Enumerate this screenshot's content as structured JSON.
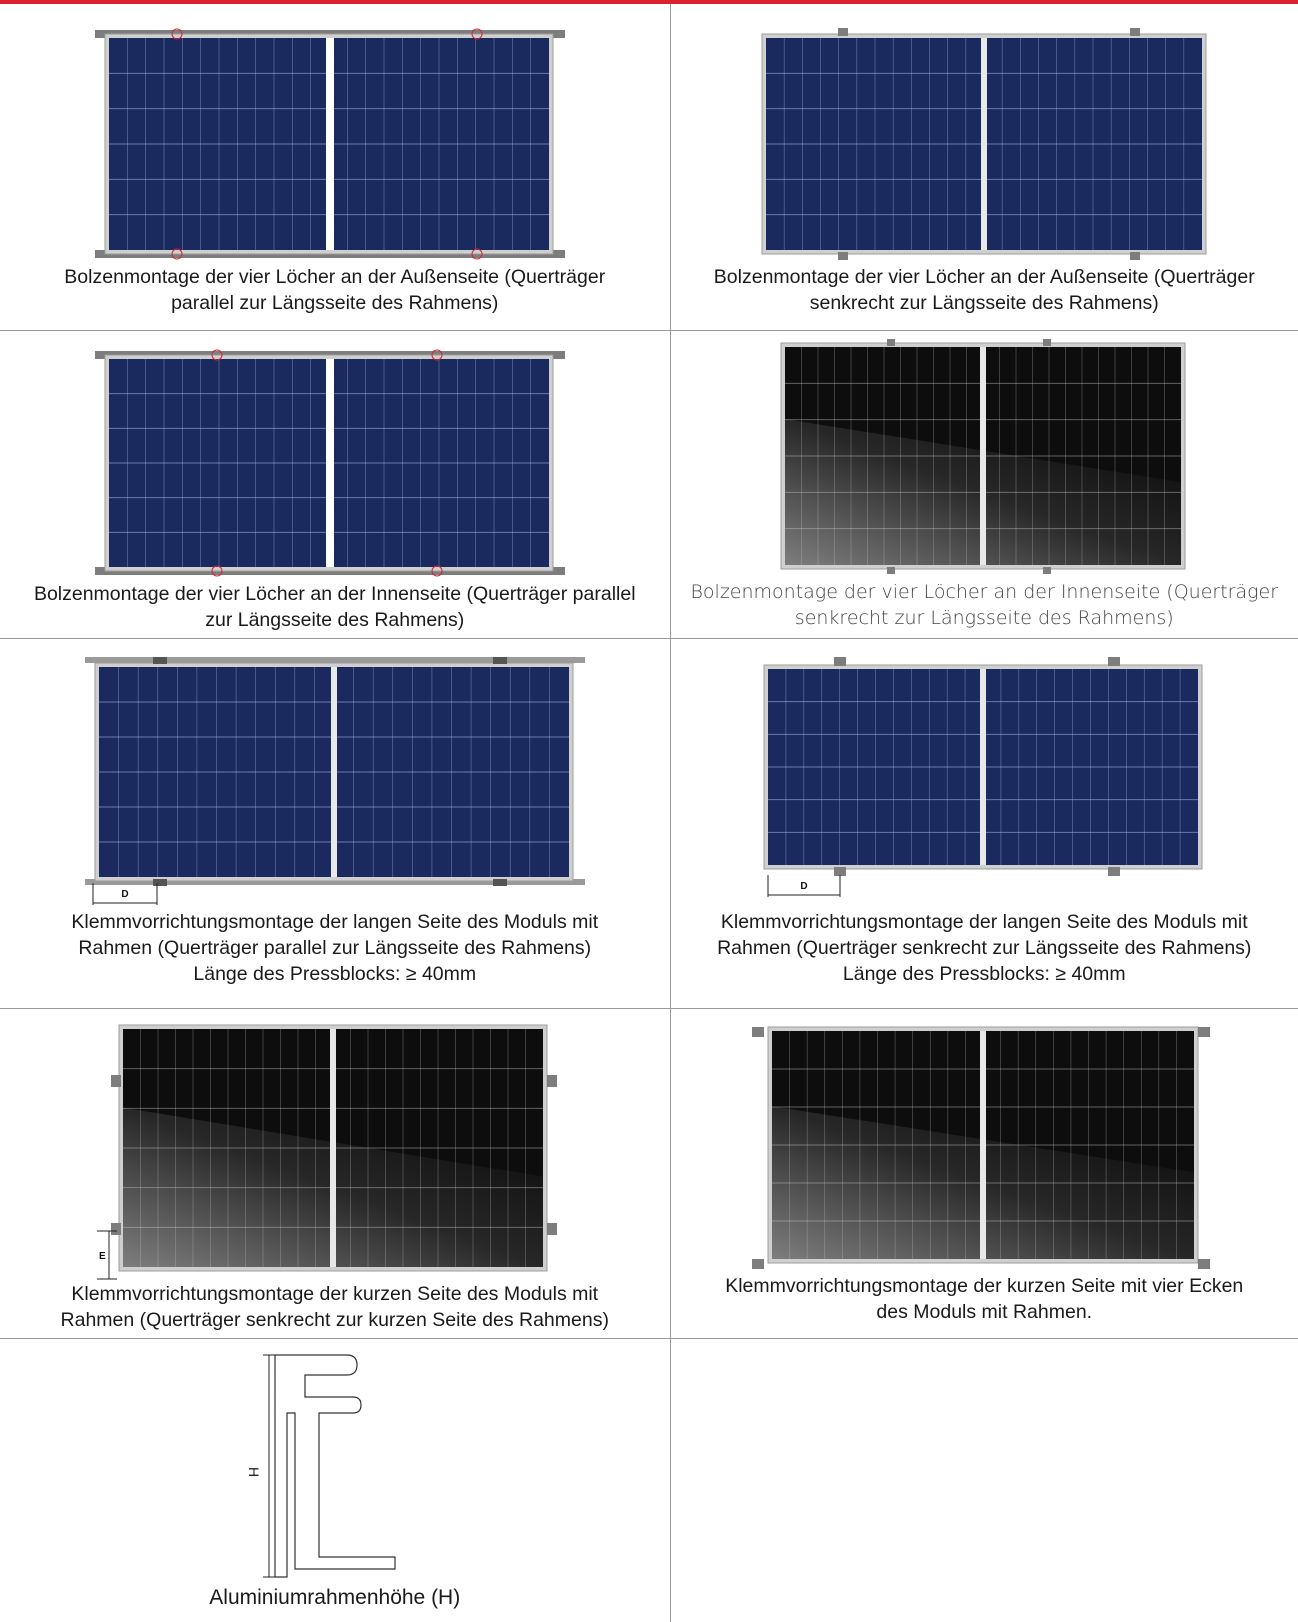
{
  "cells": [
    {
      "id": "r1l",
      "caption": [
        "Bolzenmontage der vier Löcher an der Außenseite (Querträger",
        "parallel zur Längsseite des Rahmens)"
      ]
    },
    {
      "id": "r1r",
      "caption": [
        "Bolzenmontage der vier Löcher an der Außenseite (Querträger",
        "senkrecht zur Längsseite des Rahmens)"
      ]
    },
    {
      "id": "r2l",
      "caption": [
        "Bolzenmontage der vier Löcher an der Innenseite (Querträger parallel",
        "zur Längsseite des Rahmens)"
      ]
    },
    {
      "id": "r2r",
      "caption": [
        "Bolzenmontage der vier Löcher an der Innenseite (Querträger",
        "senkrecht zur Längsseite des Rahmens)"
      ]
    },
    {
      "id": "r3l",
      "caption": [
        "Klemmvorrichtungsmontage der langen Seite des Moduls mit",
        "Rahmen (Querträger parallel zur Längsseite des Rahmens)",
        "Länge des Pressblocks: ≥ 40mm"
      ],
      "dim_label": "D"
    },
    {
      "id": "r3r",
      "caption": [
        "Klemmvorrichtungsmontage der langen Seite des Moduls mit",
        "Rahmen (Querträger senkrecht zur Längsseite des Rahmens)",
        "Länge des Pressblocks: ≥ 40mm"
      ],
      "dim_label": "D"
    },
    {
      "id": "r4l",
      "caption": [
        "Klemmvorrichtungsmontage der kurzen Seite des Moduls mit",
        "Rahmen (Querträger senkrecht zur kurzen Seite des Rahmens)"
      ],
      "dim_label": "E"
    },
    {
      "id": "r4r",
      "caption": [
        "Klemmvorrichtungsmontage der kurzen Seite mit vier Ecken",
        "des Moduls mit Rahmen."
      ]
    },
    {
      "id": "r5l",
      "caption": [
        "Aluminiumrahmenhöhe (H)"
      ],
      "dim_label": "H"
    }
  ],
  "colors": {
    "accent": "#d9232d",
    "panel_blue": "#1a2a5e",
    "panel_dark": "#0d0d0d",
    "frame_gray": "#b9b9b9",
    "rail_gray": "#7d7d7d"
  }
}
